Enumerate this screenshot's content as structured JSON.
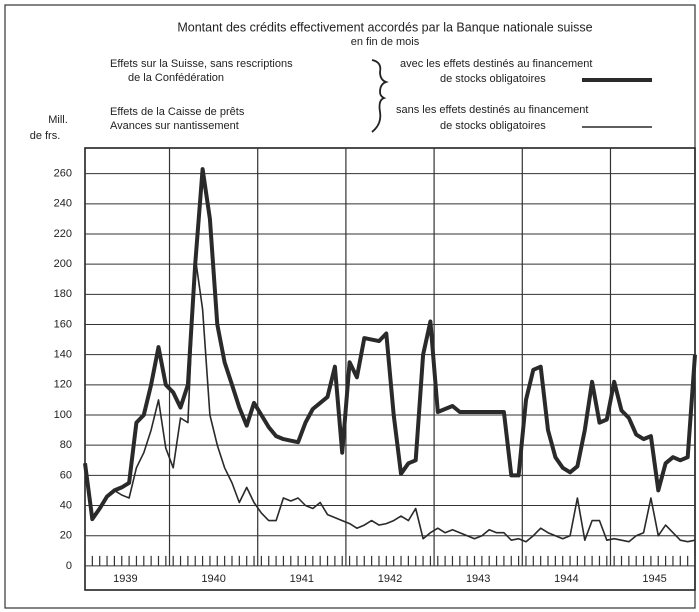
{
  "chart_data": {
    "type": "line",
    "title": "Montant des crédits effectivement accordés par la Banque nationale suisse",
    "subtitle": "en fin de mois",
    "legend_left": [
      [
        "Effets sur la Suisse, sans rescriptions",
        "de la Confédération"
      ],
      [
        "Effets de la Caisse de prêts",
        "Avances sur nantissement"
      ]
    ],
    "y_label": [
      "Mill.",
      "de frs."
    ],
    "categories": [
      null,
      null,
      null,
      null,
      null,
      null,
      "1939",
      null,
      null,
      null,
      null,
      null,
      null,
      null,
      null,
      null,
      null,
      null,
      "1940",
      null,
      null,
      null,
      null,
      null,
      null,
      null,
      null,
      null,
      null,
      null,
      "1941",
      null,
      null,
      null,
      null,
      null,
      null,
      null,
      null,
      null,
      null,
      null,
      "1942",
      null,
      null,
      null,
      null,
      null,
      null,
      null,
      null,
      null,
      null,
      null,
      "1943",
      null,
      null,
      null,
      null,
      null,
      null,
      null,
      null,
      null,
      null,
      null,
      "1944",
      null,
      null,
      null,
      null,
      null,
      null,
      null,
      null,
      null,
      null,
      null,
      "1945",
      null,
      null,
      null,
      null,
      null
    ],
    "series": [
      {
        "legend_lines": [
          "avec les effets destinés au financement",
          "de stocks obligatoires"
        ],
        "color": "#2a2a2a",
        "width": 4,
        "values": [
          68,
          31,
          38,
          46,
          50,
          52,
          55,
          95,
          100,
          120,
          145,
          120,
          115,
          105,
          120,
          200,
          263,
          230,
          160,
          135,
          120,
          105,
          93,
          108,
          100,
          92,
          86,
          84,
          83,
          82,
          95,
          104,
          108,
          112,
          132,
          75,
          135,
          125,
          151,
          150,
          149,
          154,
          100,
          61,
          68,
          70,
          140,
          162,
          102,
          104,
          106,
          102,
          102,
          102,
          102,
          102,
          102,
          102,
          60,
          60,
          110,
          130,
          132,
          90,
          72,
          65,
          62,
          66,
          90,
          122,
          95,
          97,
          122,
          103,
          98,
          87,
          84,
          86,
          50,
          68,
          72,
          70,
          72,
          140
        ]
      },
      {
        "legend_lines": [
          "sans les effets destinés au financement",
          "de stocks obligatoires"
        ],
        "color": "#2a2a2a",
        "width": 1.6,
        "values": [
          68,
          31,
          38,
          45,
          50,
          47,
          45,
          65,
          75,
          90,
          110,
          78,
          65,
          98,
          95,
          205,
          170,
          100,
          80,
          65,
          55,
          42,
          52,
          42,
          35,
          30,
          30,
          45,
          43,
          45,
          40,
          38,
          42,
          34,
          32,
          30,
          28,
          25,
          27,
          30,
          27,
          28,
          30,
          33,
          30,
          38,
          18,
          22,
          25,
          22,
          24,
          22,
          20,
          18,
          20,
          24,
          22,
          22,
          17,
          18,
          16,
          20,
          25,
          22,
          20,
          18,
          20,
          45,
          17,
          30,
          30,
          17,
          18,
          17,
          16,
          20,
          22,
          45,
          20,
          27,
          22,
          17,
          16,
          17
        ]
      }
    ],
    "ylim": [
      -16,
      277
    ],
    "yticks": [
      0,
      20,
      40,
      60,
      80,
      100,
      120,
      140,
      160,
      180,
      200,
      220,
      240,
      260
    ],
    "grid": true
  }
}
